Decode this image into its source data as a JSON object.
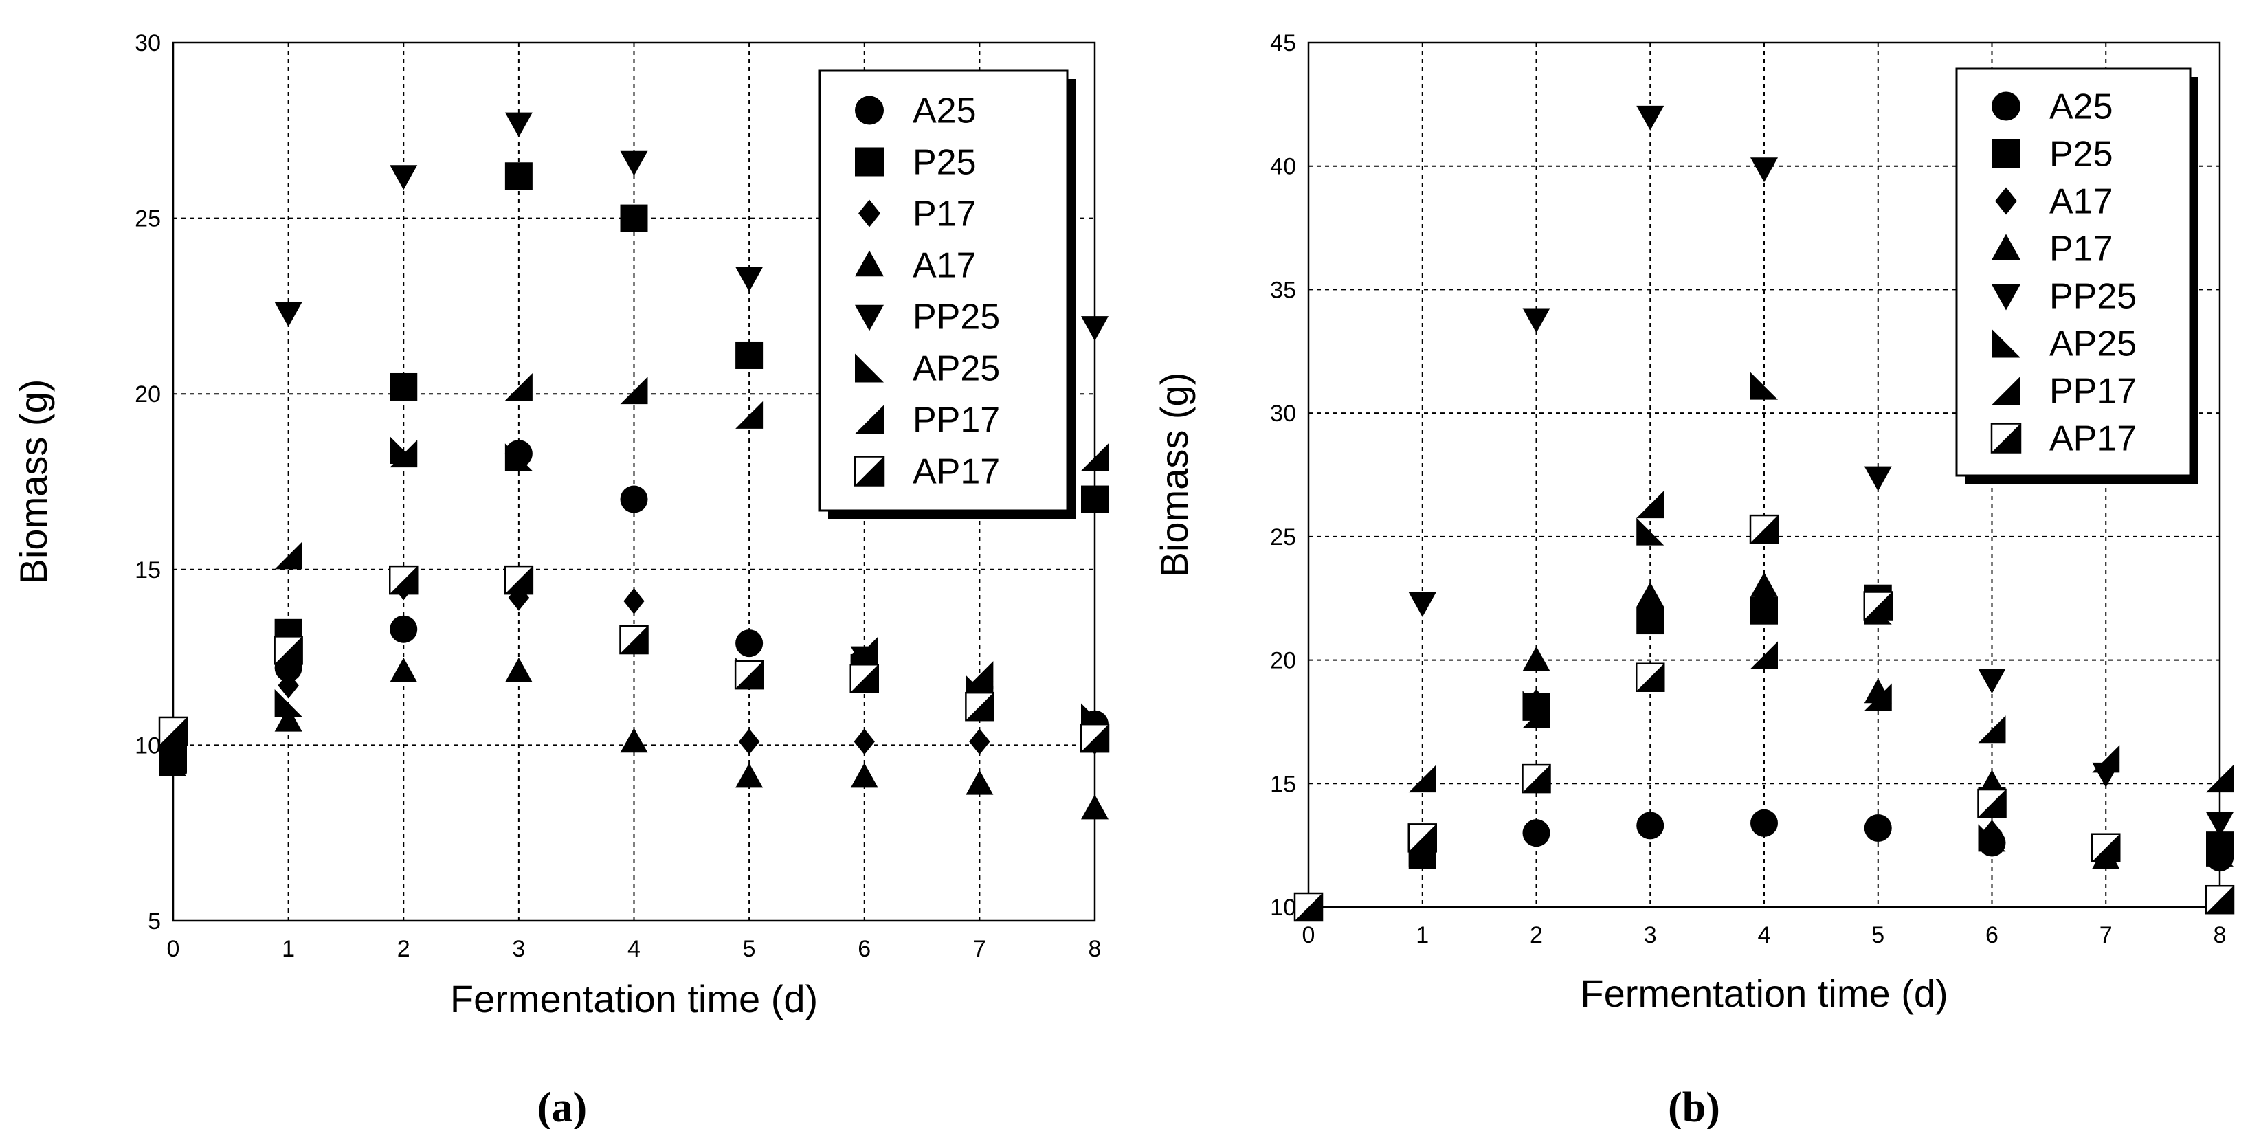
{
  "chart_data": [
    {
      "type": "scatter",
      "panel_label": "(a)",
      "xlabel": "Fermentation time (d)",
      "ylabel": "Biomass (g)",
      "xlim": [
        0,
        8
      ],
      "ylim": [
        5,
        30
      ],
      "xticks": [
        0,
        1,
        2,
        3,
        4,
        5,
        6,
        7,
        8
      ],
      "yticks": [
        5,
        10,
        15,
        20,
        25,
        30
      ],
      "grid": true,
      "legend_position": "top-right",
      "series": [
        {
          "name": "A25",
          "marker": "circle",
          "x": [
            0,
            1,
            2,
            3,
            4,
            5,
            6,
            7,
            8
          ],
          "y": [
            10.2,
            12.2,
            13.3,
            18.3,
            17.0,
            12.9,
            12.4,
            11.4,
            10.6
          ]
        },
        {
          "name": "P25",
          "marker": "square",
          "x": [
            0,
            1,
            2,
            3,
            4,
            5,
            6,
            7,
            8
          ],
          "y": [
            9.9,
            13.2,
            20.2,
            26.2,
            25.0,
            21.1,
            12.2,
            11.3,
            17.0
          ]
        },
        {
          "name": "P17",
          "marker": "diamond",
          "x": [
            0,
            1,
            2,
            3,
            4,
            5,
            6,
            7,
            8
          ],
          "y": [
            10.1,
            11.7,
            14.5,
            14.2,
            14.1,
            10.1,
            10.1,
            10.1,
            10.1
          ]
        },
        {
          "name": "A17",
          "marker": "triangle-up",
          "x": [
            0,
            1,
            2,
            3,
            4,
            5,
            6,
            7,
            8
          ],
          "y": [
            9.5,
            10.7,
            12.1,
            12.1,
            10.1,
            9.1,
            9.1,
            8.9,
            8.2
          ]
        },
        {
          "name": "PP25",
          "marker": "triangle-down",
          "x": [
            0,
            1,
            2,
            3,
            4,
            5,
            6,
            7,
            8
          ],
          "y": [
            9.6,
            22.3,
            26.2,
            27.7,
            26.6,
            23.3,
            12.5,
            11.5,
            21.9
          ]
        },
        {
          "name": "AP25",
          "marker": "half-lower-left",
          "x": [
            0,
            1,
            2,
            3,
            4,
            5,
            6,
            7,
            8
          ],
          "y": [
            9.5,
            11.2,
            18.4,
            18.2,
            13.0,
            12.1,
            12.2,
            11.6,
            10.8
          ]
        },
        {
          "name": "PP17",
          "marker": "half-lower-right",
          "x": [
            0,
            1,
            2,
            3,
            4,
            5,
            6,
            7,
            8
          ],
          "y": [
            9.6,
            15.4,
            18.3,
            20.2,
            20.1,
            19.4,
            12.7,
            12.0,
            18.2
          ]
        },
        {
          "name": "AP17",
          "marker": "half-square",
          "x": [
            0,
            1,
            2,
            3,
            4,
            5,
            6,
            7,
            8
          ],
          "y": [
            10.4,
            12.7,
            14.7,
            14.7,
            13.0,
            12.0,
            11.9,
            11.1,
            10.2
          ]
        }
      ]
    },
    {
      "type": "scatter",
      "panel_label": "(b)",
      "xlabel": "Fermentation time  (d)",
      "ylabel": "Biomass (g)",
      "xlim": [
        0,
        8
      ],
      "ylim": [
        10,
        45
      ],
      "xticks": [
        0,
        1,
        2,
        3,
        4,
        5,
        6,
        7,
        8
      ],
      "yticks": [
        10,
        15,
        20,
        25,
        30,
        35,
        40,
        45
      ],
      "grid": true,
      "legend_position": "top-right",
      "series": [
        {
          "name": "A25",
          "marker": "circle",
          "x": [
            0,
            1,
            2,
            3,
            4,
            5,
            6,
            7,
            8
          ],
          "y": [
            10.0,
            12.3,
            13.0,
            13.3,
            13.4,
            13.2,
            12.6,
            12.3,
            12.0
          ]
        },
        {
          "name": "P25",
          "marker": "square",
          "x": [
            0,
            1,
            2,
            3,
            4,
            5,
            6,
            7,
            8
          ],
          "y": [
            10.0,
            12.1,
            18.1,
            21.6,
            22.0,
            22.5,
            14.3,
            12.4,
            12.5
          ]
        },
        {
          "name": "A17",
          "marker": "diamond",
          "x": [
            0,
            1,
            2,
            3,
            4,
            5,
            6,
            7,
            8
          ],
          "y": [
            10.0,
            12.5,
            18.3,
            22.3,
            22.5,
            22.1,
            13.0,
            12.2,
            12.0
          ]
        },
        {
          "name": "P17",
          "marker": "triangle-up",
          "x": [
            0,
            1,
            2,
            3,
            4,
            5,
            6,
            7,
            8
          ],
          "y": [
            10.0,
            12.5,
            20.0,
            22.6,
            23.0,
            18.7,
            15.0,
            12.0,
            12.6
          ]
        },
        {
          "name": "PP25",
          "marker": "triangle-down",
          "x": [
            0,
            1,
            2,
            3,
            4,
            5,
            6,
            7,
            8
          ],
          "y": [
            10.0,
            22.3,
            33.8,
            42.0,
            39.9,
            27.4,
            19.2,
            15.4,
            13.4
          ]
        },
        {
          "name": "AP25",
          "marker": "half-lower-left",
          "x": [
            0,
            1,
            2,
            3,
            4,
            5,
            6,
            7,
            8
          ],
          "y": [
            10.0,
            12.2,
            18.2,
            25.2,
            31.1,
            22.0,
            12.8,
            12.4,
            12.2
          ]
        },
        {
          "name": "PP17",
          "marker": "half-lower-right",
          "x": [
            0,
            1,
            2,
            3,
            4,
            5,
            6,
            7,
            8
          ],
          "y": [
            10.0,
            15.2,
            17.8,
            26.3,
            20.2,
            18.5,
            17.2,
            16.0,
            15.2
          ]
        },
        {
          "name": "AP17",
          "marker": "half-square",
          "x": [
            0,
            1,
            2,
            3,
            4,
            5,
            6,
            7,
            8
          ],
          "y": [
            10.0,
            12.8,
            15.2,
            19.3,
            25.3,
            22.2,
            14.2,
            12.4,
            10.3
          ]
        }
      ]
    }
  ]
}
